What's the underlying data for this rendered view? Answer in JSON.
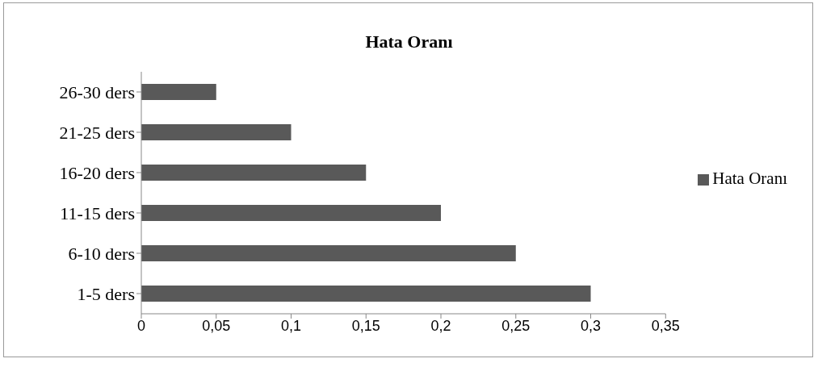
{
  "chart_data": {
    "type": "bar",
    "orientation": "horizontal",
    "title": "Hata Oranı",
    "categories": [
      "26-30 ders",
      "21-25 ders",
      "16-20 ders",
      "11-15 ders",
      "6-10 ders",
      "1-5 ders"
    ],
    "series": [
      {
        "name": "Hata Oranı",
        "color": "#595959",
        "values": [
          0.05,
          0.1,
          0.15,
          0.2,
          0.25,
          0.3
        ]
      }
    ],
    "xlim": [
      0,
      0.35
    ],
    "xticks": [
      0,
      {
        "value": 0.05,
        "label": "0,05"
      },
      {
        "value": 0.1,
        "label": "0,1"
      },
      {
        "value": 0.15,
        "label": "0,15"
      },
      {
        "value": 0.2,
        "label": "0,2"
      },
      {
        "value": 0.25,
        "label": "0,25"
      },
      {
        "value": 0.3,
        "label": "0,3"
      },
      {
        "value": 0.35,
        "label": "0,35"
      }
    ],
    "grid": false,
    "legend": "right"
  }
}
